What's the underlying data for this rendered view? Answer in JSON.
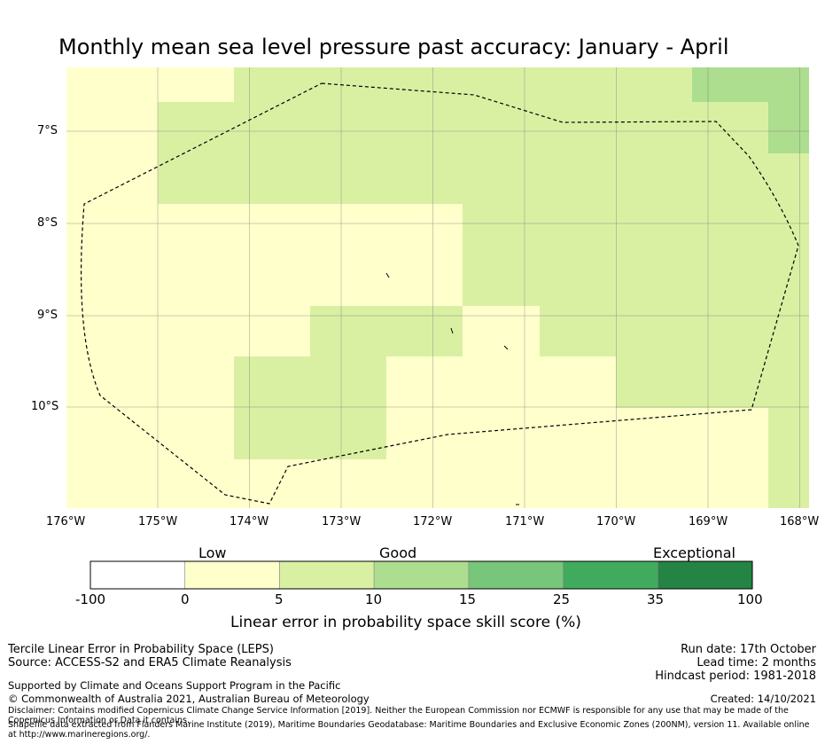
{
  "title": "Monthly mean sea level pressure past accuracy: January - April",
  "map": {
    "lon_range": [
      -176,
      -167.9
    ],
    "lat_range": [
      -6.3,
      -11.1
    ],
    "lat_labels": [
      "7°S",
      "8°S",
      "9°S",
      "10°S"
    ],
    "lon_labels": [
      "176°W",
      "175°W",
      "174°W",
      "173°W",
      "172°W",
      "171°W",
      "170°W",
      "169°W",
      "168°W"
    ],
    "colors": {
      "c0": "#ffffcc",
      "c1": "#d9f0a3",
      "c2": "#addd8e"
    }
  },
  "colorbar": {
    "categories": [
      "Low",
      "Good",
      "Exceptional"
    ],
    "ticks": [
      "-100",
      "0",
      "5",
      "10",
      "15",
      "25",
      "35",
      "100"
    ],
    "colors": [
      "#ffffff",
      "#ffffcc",
      "#d9f0a3",
      "#addd8e",
      "#78c679",
      "#41ab5d",
      "#238443"
    ],
    "label": "Linear error in probability space skill score (%)"
  },
  "footer": {
    "left_line1": "Tercile Linear Error in Probability Space (LEPS)",
    "left_line2": "Source: ACCESS-S2 and ERA5 Climate Reanalysis",
    "right_line1": "Run date: 17th October",
    "right_line2": "Lead time: 2 months",
    "right_line3": "Hindcast period: 1981-2018",
    "support": "Supported by Climate and Oceans Support Program in the Pacific",
    "copyright": "© Commonwealth of Australia 2021, Australian Bureau of Meteorology",
    "created": "Created: 14/10/2021",
    "disclaimer": "Disclaimer: Contains modified Copernicus Climate Change Service Information [2019]. Neither the European Commission nor ECMWF is responsible for any use that may be made of the Copernicus Information or Data it contains.",
    "shapefile": "Shapefile data extracted from Flanders Marine Institute (2019), Maritime Boundaries Geodatabase: Maritime Boundaries and Exclusive Economic Zones (200NM), version 11. Available online at http://www.marineregions.org/."
  }
}
